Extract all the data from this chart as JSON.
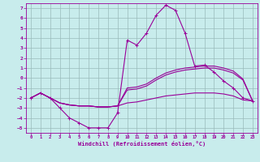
{
  "title": "",
  "xlabel": "Windchill (Refroidissement éolien,°C)",
  "background_color": "#c8ecec",
  "line_color": "#990099",
  "grid_color": "#99bbbb",
  "xlim": [
    -0.5,
    23.5
  ],
  "ylim": [
    -5.5,
    7.5
  ],
  "xticks": [
    0,
    1,
    2,
    3,
    4,
    5,
    6,
    7,
    8,
    9,
    10,
    11,
    12,
    13,
    14,
    15,
    16,
    17,
    18,
    19,
    20,
    21,
    22,
    23
  ],
  "yticks": [
    -5,
    -4,
    -3,
    -2,
    -1,
    0,
    1,
    2,
    3,
    4,
    5,
    6,
    7
  ],
  "series": [
    {
      "x": [
        0,
        1,
        2,
        3,
        4,
        5,
        6,
        7,
        8,
        9,
        10,
        11,
        12,
        13,
        14,
        15,
        16,
        17,
        18,
        19,
        20,
        21,
        22,
        23
      ],
      "y": [
        -2.0,
        -1.5,
        -2.0,
        -3.0,
        -4.0,
        -4.5,
        -5.0,
        -5.0,
        -5.0,
        -3.5,
        3.8,
        3.3,
        4.5,
        6.3,
        7.3,
        6.8,
        4.5,
        1.2,
        1.3,
        0.6,
        -0.3,
        -1.0,
        -2.0,
        -2.3
      ],
      "marker": true,
      "linewidth": 0.8
    },
    {
      "x": [
        0,
        1,
        2,
        3,
        4,
        5,
        6,
        7,
        8,
        9,
        10,
        11,
        12,
        13,
        14,
        15,
        16,
        17,
        18,
        19,
        20,
        21,
        22,
        23
      ],
      "y": [
        -2.0,
        -1.5,
        -2.0,
        -2.5,
        -2.7,
        -2.8,
        -2.8,
        -2.9,
        -2.9,
        -2.8,
        -1.2,
        -1.1,
        -0.8,
        -0.2,
        0.3,
        0.6,
        0.8,
        0.9,
        1.0,
        1.0,
        0.8,
        0.5,
        -0.2,
        -2.3
      ],
      "marker": false,
      "linewidth": 0.8
    },
    {
      "x": [
        0,
        1,
        2,
        3,
        4,
        5,
        6,
        7,
        8,
        9,
        10,
        11,
        12,
        13,
        14,
        15,
        16,
        17,
        18,
        19,
        20,
        21,
        22,
        23
      ],
      "y": [
        -2.0,
        -1.5,
        -2.0,
        -2.5,
        -2.7,
        -2.8,
        -2.8,
        -2.9,
        -2.9,
        -2.8,
        -1.0,
        -0.9,
        -0.6,
        0.0,
        0.5,
        0.8,
        1.0,
        1.1,
        1.2,
        1.2,
        1.0,
        0.7,
        -0.1,
        -2.3
      ],
      "marker": false,
      "linewidth": 0.8
    },
    {
      "x": [
        0,
        1,
        2,
        3,
        4,
        5,
        6,
        7,
        8,
        9,
        10,
        11,
        12,
        13,
        14,
        15,
        16,
        17,
        18,
        19,
        20,
        21,
        22,
        23
      ],
      "y": [
        -2.0,
        -1.5,
        -2.0,
        -2.5,
        -2.7,
        -2.8,
        -2.8,
        -2.9,
        -2.9,
        -2.8,
        -2.5,
        -2.4,
        -2.2,
        -2.0,
        -1.8,
        -1.7,
        -1.6,
        -1.5,
        -1.5,
        -1.5,
        -1.6,
        -1.8,
        -2.2,
        -2.3
      ],
      "marker": false,
      "linewidth": 0.8
    }
  ]
}
